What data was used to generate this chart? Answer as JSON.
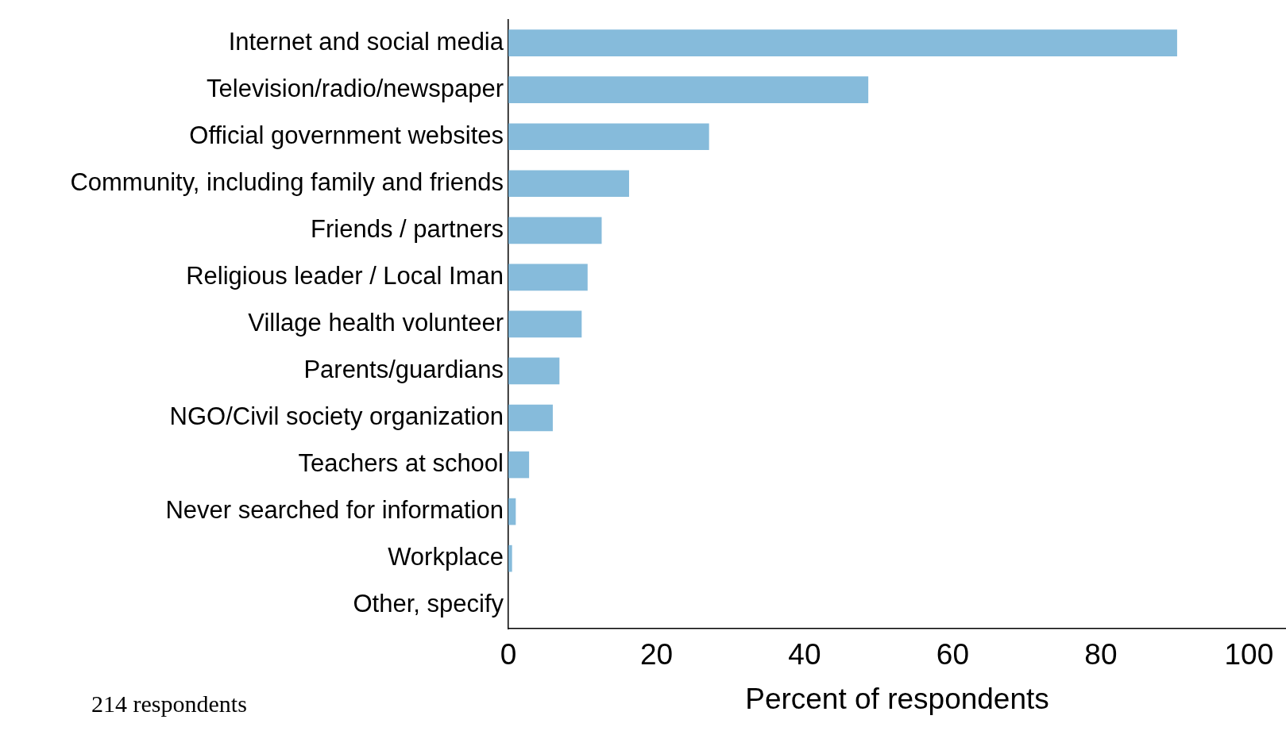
{
  "chart_data": {
    "type": "bar",
    "orientation": "horizontal",
    "xlabel": "Percent of respondents",
    "categories": [
      "Internet and social media",
      "Television/radio/newspaper",
      "Official government websites",
      "Community, including family and friends",
      "Friends / partners",
      "Religious leader / Local Iman",
      "Village health volunteer",
      "Parents/guardians",
      "NGO/Civil society organization",
      "Teachers at school",
      "Never searched for information",
      "Workplace",
      "Other, specify"
    ],
    "values": [
      90.3,
      48.6,
      27.1,
      16.3,
      12.6,
      10.7,
      9.9,
      6.9,
      6.0,
      2.8,
      1.0,
      0.5,
      0
    ],
    "color": "#86bbdb",
    "xlim": [
      0,
      105
    ],
    "xticks": [
      0,
      20,
      40,
      60,
      80,
      100
    ],
    "grid": false,
    "legend": false,
    "annotations": [
      "214 respondents"
    ]
  }
}
